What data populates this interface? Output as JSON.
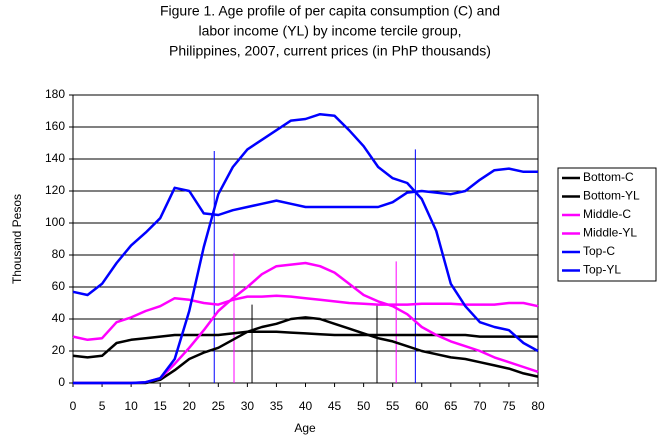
{
  "chart_data": {
    "type": "line",
    "title": [
      "Figure 1. Age profile of per capita consumption (C) and",
      "labor income (YL) by income tercile group,",
      "Philippines, 2007, current prices (in PhP thousands)"
    ],
    "xlabel": "Age",
    "ylabel": "Thousand Pesos",
    "x": [
      0,
      2.5,
      5,
      7.5,
      10,
      12.5,
      15,
      17.5,
      20,
      22.5,
      25,
      27.5,
      30,
      32.5,
      35,
      37.5,
      40,
      42.5,
      45,
      47.5,
      50,
      52.5,
      55,
      57.5,
      60,
      62.5,
      65,
      67.5,
      70,
      72.5,
      75,
      77.5,
      80
    ],
    "series": [
      {
        "name": "Bottom-C",
        "color": "#000000",
        "values": [
          17,
          16,
          17,
          25,
          27,
          28,
          29,
          30,
          30,
          30,
          30,
          31,
          32,
          32,
          32,
          31.5,
          31,
          30.5,
          30,
          30,
          30,
          30,
          30,
          30,
          30,
          30,
          30,
          30,
          29,
          29,
          29,
          29,
          29
        ]
      },
      {
        "name": "Bottom-YL",
        "color": "#000000",
        "values": [
          0,
          0,
          0,
          0,
          0,
          0,
          2,
          8,
          15,
          19,
          22,
          27,
          32,
          35,
          37,
          40,
          41,
          40,
          37,
          34,
          31,
          28,
          26,
          23,
          20,
          18,
          16,
          15,
          13,
          11,
          9,
          6,
          4
        ]
      },
      {
        "name": "Middle-C",
        "color": "#ff00ff",
        "values": [
          29,
          27,
          28,
          38,
          41,
          45,
          48,
          53,
          52,
          50,
          49,
          52,
          54,
          54,
          54.5,
          54,
          53,
          52,
          51,
          50,
          49.5,
          49,
          49,
          49,
          49.5,
          49.5,
          49.5,
          49,
          49,
          49,
          50,
          50,
          48
        ]
      },
      {
        "name": "Middle-YL",
        "color": "#ff00ff",
        "values": [
          0,
          0,
          0,
          0,
          0,
          0.5,
          3,
          12,
          22,
          33,
          45,
          53,
          60,
          68,
          73,
          74,
          75,
          73,
          69,
          62,
          55,
          51,
          48,
          43,
          35,
          30,
          26,
          23,
          20,
          16,
          13,
          10,
          7
        ]
      },
      {
        "name": "Top-C",
        "color": "#0000ff",
        "values": [
          57,
          55,
          62,
          75,
          86,
          94,
          103,
          122,
          120,
          106,
          105,
          108,
          110,
          112,
          114,
          112,
          110,
          110,
          110,
          110,
          110,
          110,
          113,
          119,
          120,
          119,
          118,
          120,
          127,
          133,
          134,
          132,
          132
        ]
      },
      {
        "name": "Top-YL",
        "color": "#0000ff",
        "values": [
          0,
          0,
          0,
          0,
          0,
          0.5,
          3,
          15,
          45,
          85,
          118,
          135,
          146,
          152,
          158,
          164,
          165,
          168,
          167,
          158,
          148,
          135,
          128,
          125,
          115,
          95,
          62,
          48,
          38,
          35,
          33,
          25,
          20
        ]
      }
    ],
    "reference_lines": [
      {
        "x": 24.3,
        "y": 145,
        "color": "#0000ff"
      },
      {
        "x": 27.7,
        "y": 81,
        "color": "#ff00ff"
      },
      {
        "x": 30.8,
        "y": 49,
        "color": "#000000"
      },
      {
        "x": 52.3,
        "y": 49,
        "color": "#000000"
      },
      {
        "x": 55.6,
        "y": 76,
        "color": "#ff00ff"
      },
      {
        "x": 58.9,
        "y": 146,
        "color": "#0000ff"
      }
    ],
    "xlim": [
      0,
      80
    ],
    "ylim": [
      0,
      180
    ],
    "xticks": [
      0,
      5,
      10,
      15,
      20,
      25,
      30,
      35,
      40,
      45,
      50,
      55,
      60,
      65,
      70,
      75,
      80
    ],
    "yticks": [
      0,
      20,
      40,
      60,
      80,
      100,
      120,
      140,
      160,
      180
    ],
    "grid": true,
    "legend": "right"
  }
}
